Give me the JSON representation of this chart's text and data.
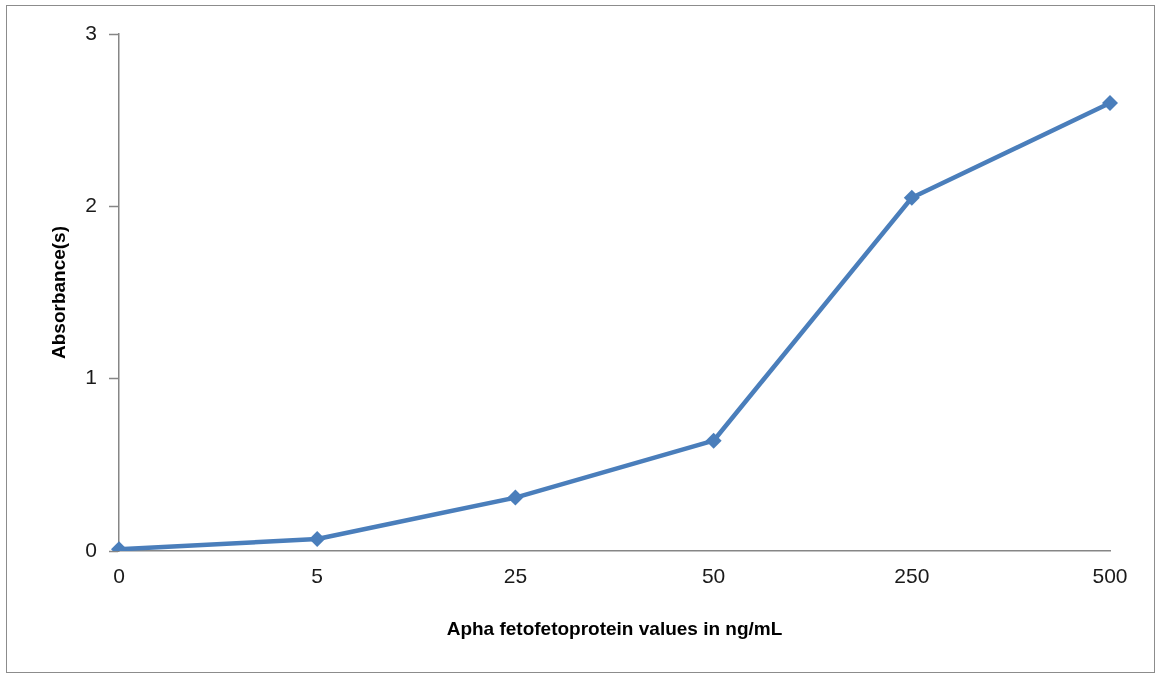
{
  "chart_data": {
    "type": "line",
    "xlabel": "Apha fetofetoprotein values in ng/mL",
    "ylabel": "Absorbance(s)",
    "categories": [
      "0",
      "5",
      "25",
      "50",
      "250",
      "500"
    ],
    "series": [
      {
        "color": "#4a7ebb",
        "values": [
          0.01,
          0.07,
          0.31,
          0.64,
          2.05,
          2.6
        ]
      }
    ],
    "ylim": [
      0,
      3
    ],
    "yticks": [
      0,
      1,
      2,
      3
    ],
    "marker": "diamond",
    "line_style": "solid"
  }
}
